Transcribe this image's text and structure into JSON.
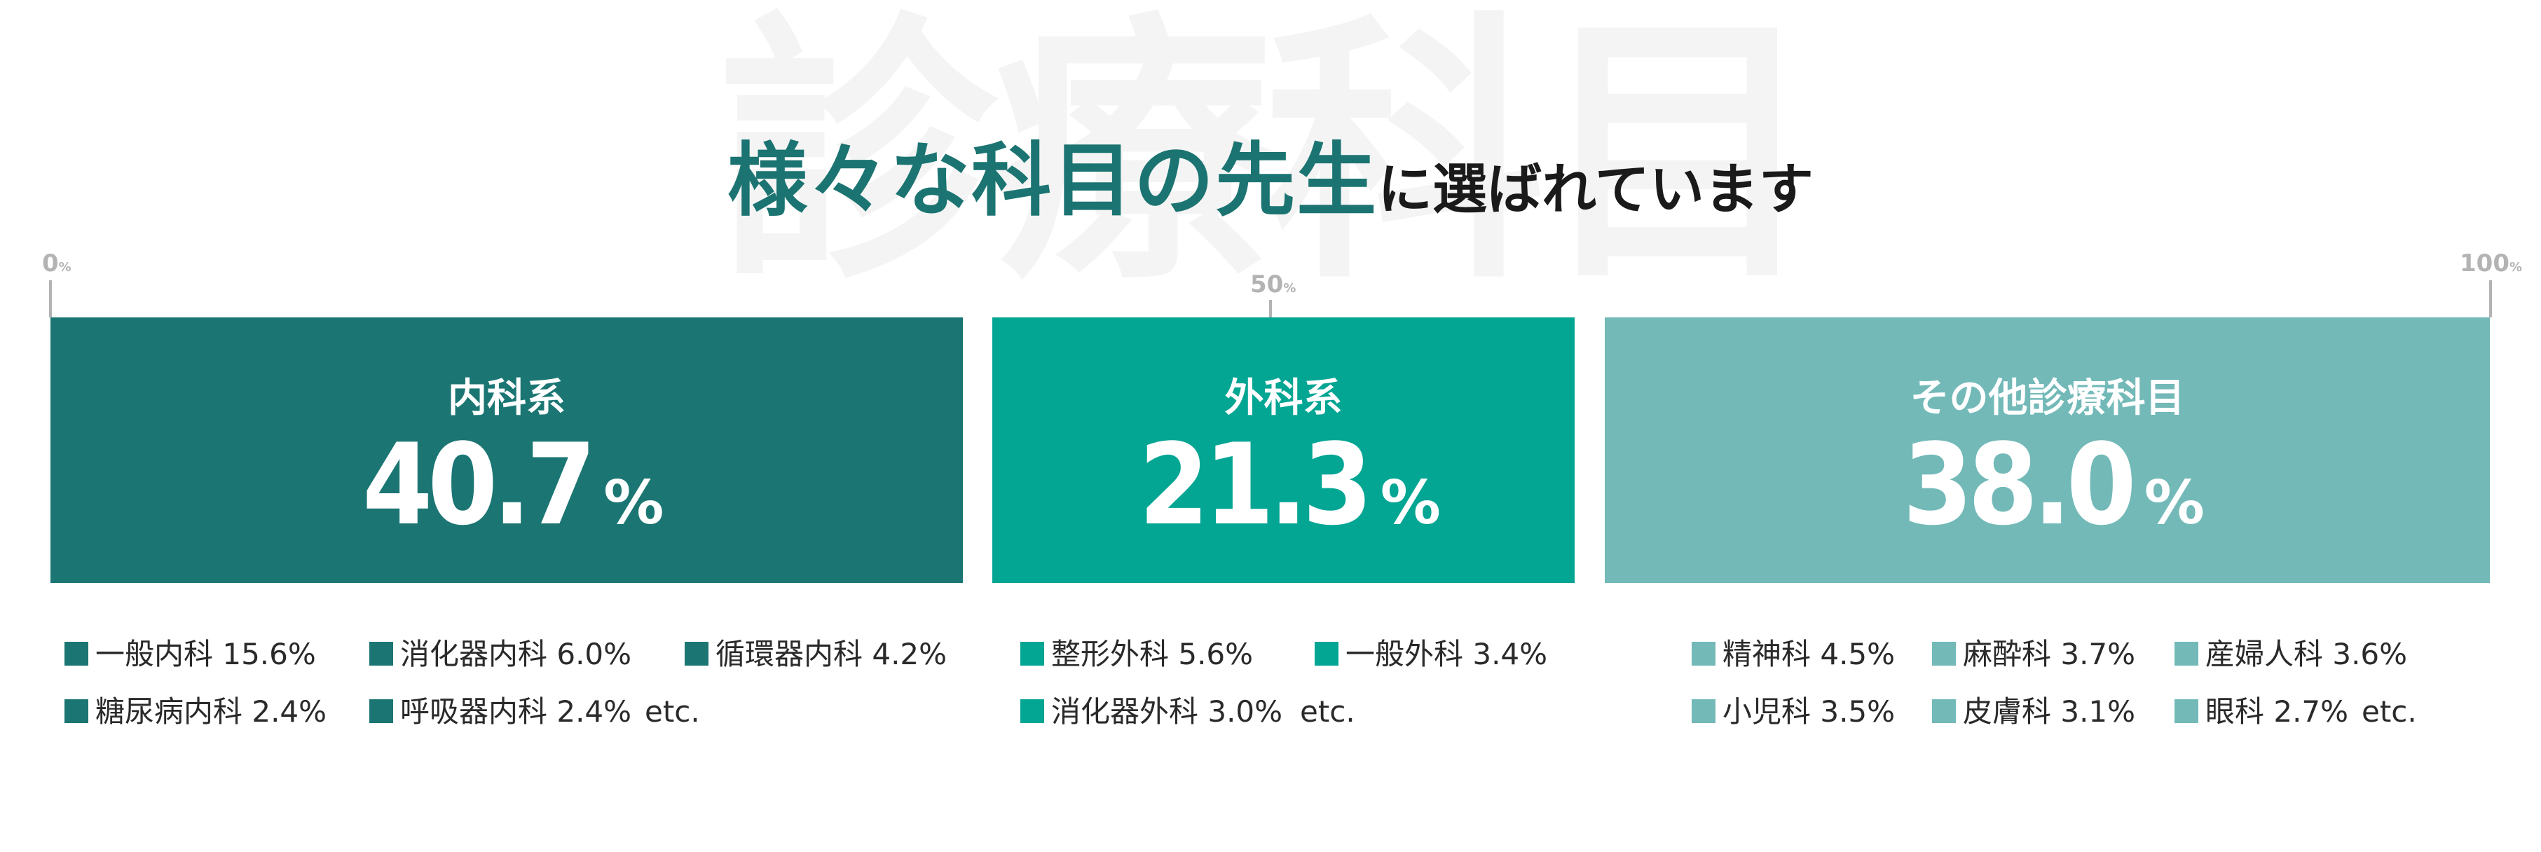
{
  "watermark": "診療科目",
  "title": {
    "accent": "様々な科目の先生",
    "rest": "に選ばれています"
  },
  "axis": {
    "ticks": [
      {
        "num": "0",
        "unit": "%"
      },
      {
        "num": "50",
        "unit": "%"
      },
      {
        "num": "100",
        "unit": "%"
      }
    ]
  },
  "colors": {
    "internal": "#1b7673",
    "surgery": "#03a593",
    "other": "#72b9b8"
  },
  "chart_data": {
    "type": "bar",
    "orientation": "horizontal-stacked",
    "xlim": [
      0,
      100
    ],
    "categories": [
      "内科系",
      "外科系",
      "その他診療科目"
    ],
    "values": [
      40.7,
      21.3,
      38.0
    ],
    "value_labels": [
      "40.7",
      "21.3",
      "38.0"
    ],
    "unit": "%",
    "breakdowns": [
      {
        "items": [
          "一般内科 15.6%",
          "消化器内科 6.0%",
          "循環器内科 4.2%",
          "糖尿病内科 2.4%",
          "呼吸器内科 2.4%"
        ],
        "etc": "etc."
      },
      {
        "items": [
          "整形外科 5.6%",
          "一般外科 3.4%",
          "消化器外科 3.0%"
        ],
        "etc": "etc."
      },
      {
        "items": [
          "精神科 4.5%",
          "麻酔科 3.7%",
          "産婦人科 3.6%",
          "小児科 3.5%",
          "皮膚科 3.1%",
          "眼科 2.7%"
        ],
        "etc": "etc."
      }
    ]
  }
}
